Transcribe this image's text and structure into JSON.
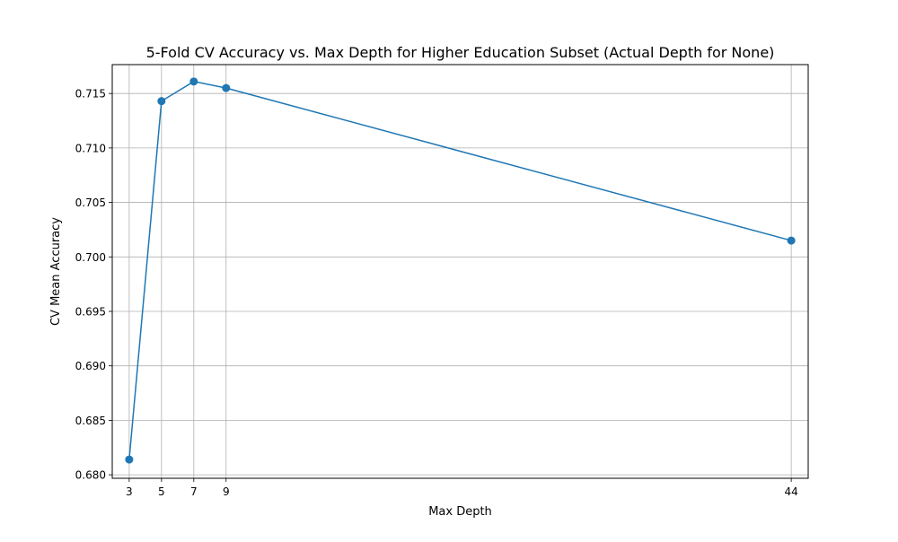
{
  "chart_data": {
    "type": "line",
    "title": "5-Fold CV Accuracy vs. Max Depth for Higher Education Subset (Actual Depth for None)",
    "xlabel": "Max Depth",
    "ylabel": "CV Mean Accuracy",
    "x": [
      3,
      5,
      7,
      9,
      44
    ],
    "series": [
      {
        "values": [
          0.6814,
          0.7143,
          0.7161,
          0.7155,
          0.7015
        ]
      }
    ],
    "xticks": [
      3,
      5,
      7,
      9,
      44
    ],
    "yticks": [
      0.68,
      0.685,
      0.69,
      0.695,
      0.7,
      0.705,
      0.71,
      0.715
    ],
    "xlim": [
      1.95,
      45.05
    ],
    "ylim": [
      0.67968,
      0.71765
    ],
    "grid": true,
    "marker": "circle",
    "color": "#1f77b4"
  }
}
